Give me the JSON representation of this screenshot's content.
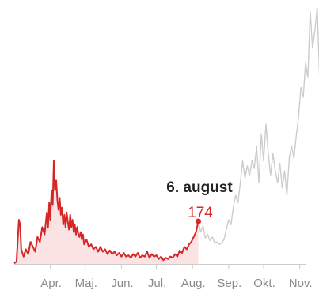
{
  "chart_data": {
    "type": "line",
    "title": "",
    "xlabel": "",
    "ylabel": "",
    "x_ticks": [
      "Apr.",
      "Maj.",
      "Jun.",
      "Jul.",
      "Aug.",
      "Sep.",
      "Okt.",
      "Nov."
    ],
    "x_range_days": [
      0,
      250
    ],
    "y_range": [
      0,
      1050
    ],
    "colors": {
      "highlight": "#d62728",
      "highlight_fill": "#fbe3e3",
      "future": "#cccccc",
      "axis": "#cccccc"
    },
    "annotation": {
      "date": "6. august",
      "value": "174",
      "day": 158
    },
    "series": [
      {
        "points": [
          [
            0,
            2
          ],
          [
            2,
            10
          ],
          [
            4,
            180
          ],
          [
            5,
            160
          ],
          [
            6,
            60
          ],
          [
            8,
            30
          ],
          [
            10,
            60
          ],
          [
            12,
            40
          ],
          [
            14,
            90
          ],
          [
            16,
            70
          ],
          [
            18,
            50
          ],
          [
            20,
            110
          ],
          [
            22,
            90
          ],
          [
            24,
            150
          ],
          [
            26,
            120
          ],
          [
            28,
            210
          ],
          [
            29,
            150
          ],
          [
            30,
            250
          ],
          [
            31,
            180
          ],
          [
            32,
            300
          ],
          [
            33,
            240
          ],
          [
            34,
            420
          ],
          [
            35,
            300
          ],
          [
            36,
            340
          ],
          [
            37,
            260
          ],
          [
            38,
            220
          ],
          [
            39,
            270
          ],
          [
            40,
            200
          ],
          [
            41,
            230
          ],
          [
            42,
            160
          ],
          [
            43,
            200
          ],
          [
            44,
            150
          ],
          [
            45,
            210
          ],
          [
            46,
            170
          ],
          [
            47,
            140
          ],
          [
            48,
            200
          ],
          [
            49,
            150
          ],
          [
            50,
            180
          ],
          [
            51,
            130
          ],
          [
            52,
            160
          ],
          [
            53,
            120
          ],
          [
            54,
            150
          ],
          [
            55,
            120
          ],
          [
            56,
            110
          ],
          [
            57,
            130
          ],
          [
            58,
            100
          ],
          [
            59,
            120
          ],
          [
            60,
            80
          ],
          [
            62,
            100
          ],
          [
            64,
            70
          ],
          [
            66,
            80
          ],
          [
            68,
            60
          ],
          [
            70,
            70
          ],
          [
            72,
            50
          ],
          [
            74,
            70
          ],
          [
            76,
            50
          ],
          [
            78,
            60
          ],
          [
            80,
            40
          ],
          [
            82,
            55
          ],
          [
            84,
            40
          ],
          [
            86,
            50
          ],
          [
            88,
            35
          ],
          [
            90,
            45
          ],
          [
            92,
            30
          ],
          [
            94,
            45
          ],
          [
            96,
            30
          ],
          [
            98,
            35
          ],
          [
            100,
            25
          ],
          [
            102,
            40
          ],
          [
            104,
            30
          ],
          [
            106,
            45
          ],
          [
            108,
            25
          ],
          [
            110,
            35
          ],
          [
            112,
            30
          ],
          [
            114,
            50
          ],
          [
            116,
            25
          ],
          [
            118,
            40
          ],
          [
            120,
            30
          ],
          [
            122,
            35
          ],
          [
            124,
            20
          ],
          [
            126,
            30
          ],
          [
            128,
            15
          ],
          [
            130,
            25
          ],
          [
            132,
            20
          ],
          [
            134,
            30
          ],
          [
            136,
            25
          ],
          [
            138,
            40
          ],
          [
            140,
            30
          ],
          [
            142,
            55
          ],
          [
            144,
            45
          ],
          [
            146,
            70
          ],
          [
            148,
            60
          ],
          [
            150,
            80
          ],
          [
            152,
            90
          ],
          [
            154,
            110
          ],
          [
            156,
            130
          ],
          [
            158,
            174
          ]
        ]
      },
      {
        "points": [
          [
            158,
            174
          ],
          [
            160,
            130
          ],
          [
            162,
            155
          ],
          [
            164,
            105
          ],
          [
            166,
            120
          ],
          [
            168,
            95
          ],
          [
            170,
            110
          ],
          [
            172,
            85
          ],
          [
            174,
            90
          ],
          [
            176,
            80
          ],
          [
            178,
            85
          ],
          [
            180,
            100
          ],
          [
            182,
            140
          ],
          [
            184,
            180
          ],
          [
            186,
            160
          ],
          [
            188,
            230
          ],
          [
            190,
            280
          ],
          [
            192,
            250
          ],
          [
            194,
            330
          ],
          [
            196,
            420
          ],
          [
            198,
            350
          ],
          [
            200,
            400
          ],
          [
            202,
            360
          ],
          [
            204,
            420
          ],
          [
            206,
            390
          ],
          [
            208,
            480
          ],
          [
            210,
            330
          ],
          [
            212,
            530
          ],
          [
            214,
            420
          ],
          [
            216,
            570
          ],
          [
            218,
            450
          ],
          [
            220,
            360
          ],
          [
            222,
            450
          ],
          [
            224,
            380
          ],
          [
            226,
            330
          ],
          [
            228,
            410
          ],
          [
            230,
            310
          ],
          [
            232,
            380
          ],
          [
            234,
            280
          ],
          [
            236,
            430
          ],
          [
            238,
            480
          ],
          [
            240,
            430
          ],
          [
            242,
            520
          ],
          [
            244,
            600
          ],
          [
            246,
            720
          ],
          [
            248,
            680
          ],
          [
            250,
            820
          ],
          [
            252,
            760
          ],
          [
            254,
            1030
          ],
          [
            256,
            880
          ],
          [
            258,
            950
          ],
          [
            260,
            1045
          ],
          [
            262,
            760
          ],
          [
            264,
            930
          ]
        ]
      }
    ]
  }
}
